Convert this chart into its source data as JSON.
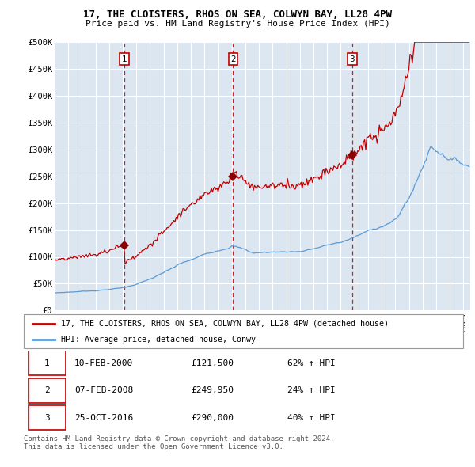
{
  "title": "17, THE CLOISTERS, RHOS ON SEA, COLWYN BAY, LL28 4PW",
  "subtitle": "Price paid vs. HM Land Registry's House Price Index (HPI)",
  "ylim": [
    0,
    500000
  ],
  "yticks": [
    0,
    50000,
    100000,
    150000,
    200000,
    250000,
    300000,
    350000,
    400000,
    450000,
    500000
  ],
  "ytick_labels": [
    "£0",
    "£50K",
    "£100K",
    "£150K",
    "£200K",
    "£250K",
    "£300K",
    "£350K",
    "£400K",
    "£450K",
    "£500K"
  ],
  "xlim_start": 1995.0,
  "xlim_end": 2025.5,
  "plot_bg_color": "#dce6f1",
  "line_color_hpi": "#5b9bd5",
  "line_color_price": "#c00000",
  "sale_dates": [
    2000.11,
    2008.1,
    2016.82
  ],
  "sale_prices": [
    121500,
    249950,
    290000
  ],
  "sale_labels": [
    "1",
    "2",
    "3"
  ],
  "legend_label_price": "17, THE CLOISTERS, RHOS ON SEA, COLWYN BAY, LL28 4PW (detached house)",
  "legend_label_hpi": "HPI: Average price, detached house, Conwy",
  "table_data": [
    [
      "1",
      "10-FEB-2000",
      "£121,500",
      "62% ↑ HPI"
    ],
    [
      "2",
      "07-FEB-2008",
      "£249,950",
      "24% ↑ HPI"
    ],
    [
      "3",
      "25-OCT-2016",
      "£290,000",
      "40% ↑ HPI"
    ]
  ],
  "footer_text": "Contains HM Land Registry data © Crown copyright and database right 2024.\nThis data is licensed under the Open Government Licence v3.0.",
  "vline_color": "#c00000",
  "sale_marker_color": "#8b0000"
}
